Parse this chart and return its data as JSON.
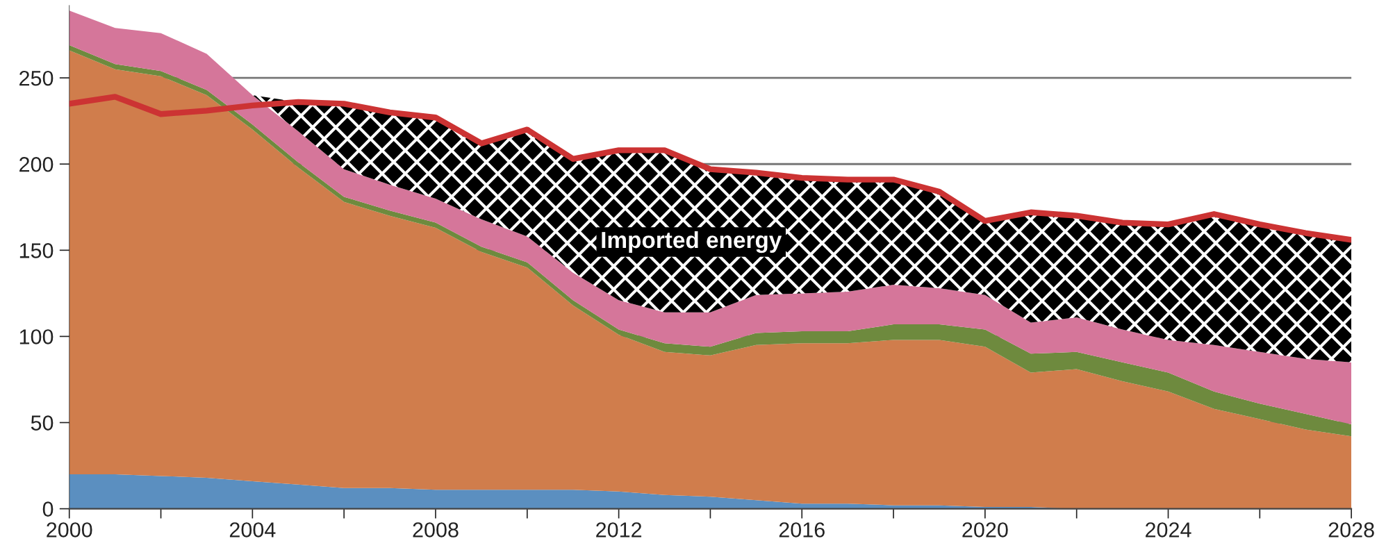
{
  "chart_data": {
    "type": "area",
    "stacked": true,
    "x": [
      2000,
      2001,
      2002,
      2003,
      2004,
      2005,
      2006,
      2007,
      2008,
      2009,
      2010,
      2011,
      2012,
      2013,
      2014,
      2015,
      2016,
      2017,
      2018,
      2019,
      2020,
      2021,
      2022,
      2023,
      2024,
      2025,
      2026,
      2027,
      2028
    ],
    "series": [
      {
        "color": "#5b8fc0",
        "values": [
          20,
          20,
          19,
          18,
          16,
          14,
          12,
          12,
          11,
          11,
          11,
          11,
          10,
          8,
          7,
          5,
          3,
          3,
          2,
          2,
          1,
          1,
          0,
          0,
          0,
          0,
          0,
          0,
          0
        ]
      },
      {
        "color": "#d07d4c",
        "values": [
          246,
          235,
          232,
          222,
          204,
          184,
          166,
          158,
          152,
          138,
          129,
          107,
          91,
          83,
          82,
          90,
          93,
          93,
          96,
          96,
          93,
          78,
          81,
          74,
          68,
          58,
          52,
          46,
          42
        ]
      },
      {
        "color": "#6e8a3e",
        "values": [
          3,
          3,
          3,
          3,
          3,
          3,
          3,
          3,
          3,
          3,
          3,
          3,
          3,
          5,
          5,
          7,
          7,
          7,
          9,
          9,
          10,
          11,
          10,
          11,
          11,
          10,
          9,
          9,
          7
        ]
      },
      {
        "color": "#d5769a",
        "values": [
          20,
          21,
          22,
          21,
          17,
          18,
          16,
          15,
          14,
          16,
          15,
          16,
          17,
          18,
          20,
          22,
          22,
          23,
          23,
          21,
          20,
          18,
          20,
          19,
          19,
          27,
          30,
          32,
          36
        ]
      },
      {
        "name": "Imported energy",
        "color": "#000000",
        "values": [
          0,
          0,
          0,
          0,
          0,
          17,
          38,
          42,
          47,
          44,
          62,
          66,
          87,
          94,
          83,
          71,
          67,
          65,
          61,
          56,
          43,
          64,
          59,
          62,
          67,
          76,
          74,
          73,
          71
        ]
      },
      {
        "type": "line",
        "color": "#cc3333",
        "values": [
          235,
          239,
          229,
          231,
          234,
          236,
          235,
          230,
          227,
          212,
          220,
          203,
          208,
          208,
          197,
          195,
          192,
          191,
          191,
          184,
          167,
          172,
          170,
          166,
          165,
          171,
          165,
          160,
          156
        ]
      }
    ],
    "xlim": [
      2000,
      2028
    ],
    "xticks": [
      2000,
      {
        "value": 2002,
        "label": null
      },
      2004,
      {
        "value": 2006,
        "label": null
      },
      2008,
      {
        "value": 2010,
        "label": null
      },
      2012,
      {
        "value": 2014,
        "label": null
      },
      2016,
      {
        "value": 2018,
        "label": null
      },
      2020,
      {
        "value": 2022,
        "label": null
      },
      2024,
      {
        "value": 2026,
        "label": null
      },
      2028
    ],
    "ylim": [
      0,
      292
    ],
    "yticks": [
      0,
      50,
      100,
      150,
      200,
      250
    ],
    "grid": "y",
    "legend": false
  }
}
